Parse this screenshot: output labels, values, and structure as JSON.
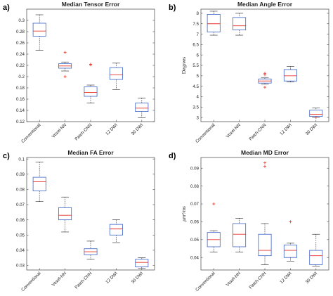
{
  "chart_data": [
    {
      "type": "box",
      "panel_label": "a)",
      "title": "Median Tensor Error",
      "ylabel": "",
      "ylim": [
        0.12,
        0.32
      ],
      "yticks": [
        0.12,
        0.14,
        0.16,
        0.18,
        0.2,
        0.22,
        0.24,
        0.26,
        0.28,
        0.3
      ],
      "categories": [
        "Conventional",
        "Voxel-NN",
        "Patch-CNN",
        "12 DWI",
        "30 DWI"
      ],
      "boxes": [
        {
          "min": 0.247,
          "q1": 0.272,
          "median": 0.281,
          "q3": 0.295,
          "max": 0.31,
          "outliers": []
        },
        {
          "min": 0.21,
          "q1": 0.215,
          "median": 0.219,
          "q3": 0.223,
          "max": 0.226,
          "outliers": [
            0.2,
            0.243
          ]
        },
        {
          "min": 0.153,
          "q1": 0.165,
          "median": 0.172,
          "q3": 0.182,
          "max": 0.185,
          "outliers": [
            0.221,
            0.222
          ]
        },
        {
          "min": 0.177,
          "q1": 0.195,
          "median": 0.203,
          "q3": 0.216,
          "max": 0.224,
          "outliers": []
        },
        {
          "min": 0.127,
          "q1": 0.138,
          "median": 0.144,
          "q3": 0.153,
          "max": 0.162,
          "outliers": []
        }
      ]
    },
    {
      "type": "box",
      "panel_label": "b)",
      "title": "Median Angle Error",
      "ylabel": "Degrees",
      "ylim": [
        2.8,
        8.2
      ],
      "yticks": [
        3,
        3.5,
        4,
        4.5,
        5,
        5.5,
        6,
        6.5,
        7,
        7.5,
        8
      ],
      "categories": [
        "Conventional",
        "Voxel-NN",
        "Patch-CNN",
        "12 DWI",
        "30 DWI"
      ],
      "boxes": [
        {
          "min": 6.95,
          "q1": 7.1,
          "median": 7.5,
          "q3": 7.95,
          "max": 8.1,
          "outliers": []
        },
        {
          "min": 6.95,
          "q1": 7.2,
          "median": 7.4,
          "q3": 7.8,
          "max": 8.0,
          "outliers": []
        },
        {
          "min": 4.6,
          "q1": 4.65,
          "median": 4.75,
          "q3": 4.85,
          "max": 4.9,
          "outliers": [
            4.45,
            5.05,
            5.12
          ]
        },
        {
          "min": 4.7,
          "q1": 4.75,
          "median": 5.0,
          "q3": 5.3,
          "max": 5.45,
          "outliers": []
        },
        {
          "min": 3.0,
          "q1": 3.05,
          "median": 3.15,
          "q3": 3.35,
          "max": 3.45,
          "outliers": [
            3.0
          ]
        }
      ]
    },
    {
      "type": "box",
      "panel_label": "c)",
      "title": "Median FA Error",
      "ylabel": "",
      "ylim": [
        0.027,
        0.101
      ],
      "yticks": [
        0.03,
        0.04,
        0.05,
        0.06,
        0.07,
        0.08,
        0.09,
        0.1
      ],
      "categories": [
        "Conventional",
        "Voxel-NN",
        "Patch-CNN",
        "12 DWI",
        "30 DWI"
      ],
      "boxes": [
        {
          "min": 0.072,
          "q1": 0.079,
          "median": 0.085,
          "q3": 0.088,
          "max": 0.098,
          "outliers": []
        },
        {
          "min": 0.052,
          "q1": 0.06,
          "median": 0.063,
          "q3": 0.068,
          "max": 0.075,
          "outliers": []
        },
        {
          "min": 0.034,
          "q1": 0.037,
          "median": 0.039,
          "q3": 0.041,
          "max": 0.046,
          "outliers": []
        },
        {
          "min": 0.045,
          "q1": 0.05,
          "median": 0.054,
          "q3": 0.057,
          "max": 0.06,
          "outliers": []
        },
        {
          "min": 0.028,
          "q1": 0.029,
          "median": 0.032,
          "q3": 0.034,
          "max": 0.035,
          "outliers": []
        }
      ]
    },
    {
      "type": "box",
      "panel_label": "d)",
      "title": "Median MD Error",
      "ylabel": "μm²/ms",
      "ylim": [
        0.033,
        0.096
      ],
      "yticks": [
        0.04,
        0.05,
        0.06,
        0.07,
        0.08,
        0.09
      ],
      "categories": [
        "Conventional",
        "Voxel-NN",
        "Patch-CNN",
        "12 DWI",
        "30 DWI"
      ],
      "boxes": [
        {
          "min": 0.043,
          "q1": 0.046,
          "median": 0.05,
          "q3": 0.054,
          "max": 0.055,
          "outliers": [
            0.07
          ]
        },
        {
          "min": 0.043,
          "q1": 0.046,
          "median": 0.053,
          "q3": 0.059,
          "max": 0.062,
          "outliers": []
        },
        {
          "min": 0.036,
          "q1": 0.041,
          "median": 0.044,
          "q3": 0.053,
          "max": 0.059,
          "outliers": [
            0.091,
            0.093
          ]
        },
        {
          "min": 0.038,
          "q1": 0.04,
          "median": 0.044,
          "q3": 0.047,
          "max": 0.048,
          "outliers": [
            0.06
          ]
        },
        {
          "min": 0.035,
          "q1": 0.036,
          "median": 0.041,
          "q3": 0.044,
          "max": 0.053,
          "outliers": []
        }
      ]
    }
  ]
}
